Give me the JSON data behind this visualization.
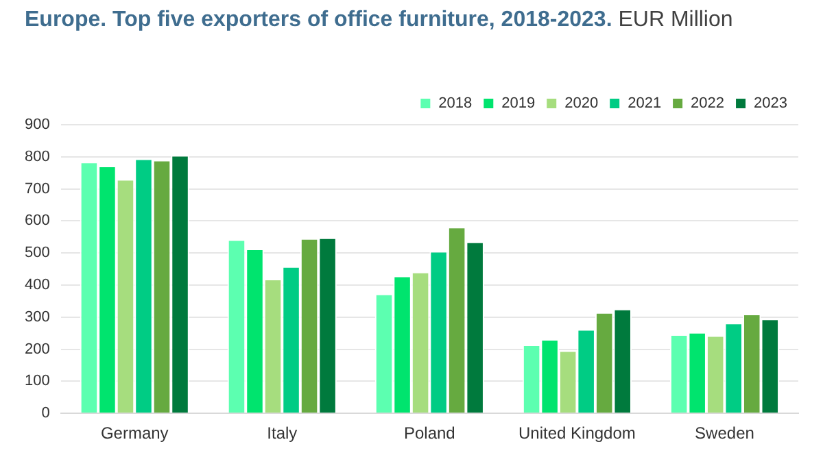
{
  "chart_data": {
    "type": "bar",
    "title": "Europe. Top five exporters of office furniture, 2018-2023.",
    "subtitle": "EUR Million",
    "categories": [
      "Germany",
      "Italy",
      "Poland",
      "United Kingdom",
      "Sweden"
    ],
    "series": [
      {
        "name": "2018",
        "color": "#5cffb0",
        "values": [
          784,
          542,
          373,
          214,
          246
        ]
      },
      {
        "name": "2019",
        "color": "#00e46e",
        "values": [
          772,
          513,
          429,
          231,
          253
        ]
      },
      {
        "name": "2020",
        "color": "#a6dd7e",
        "values": [
          730,
          419,
          441,
          196,
          243
        ]
      },
      {
        "name": "2021",
        "color": "#00cc84",
        "values": [
          794,
          458,
          506,
          262,
          282
        ]
      },
      {
        "name": "2022",
        "color": "#66aa40",
        "values": [
          790,
          546,
          581,
          315,
          310
        ]
      },
      {
        "name": "2023",
        "color": "#007a3d",
        "values": [
          805,
          548,
          535,
          326,
          295
        ]
      }
    ],
    "ylim": [
      0,
      900
    ],
    "yticks": [
      0,
      100,
      200,
      300,
      400,
      500,
      600,
      700,
      800,
      900
    ],
    "grid": "y",
    "legend": "top right"
  }
}
